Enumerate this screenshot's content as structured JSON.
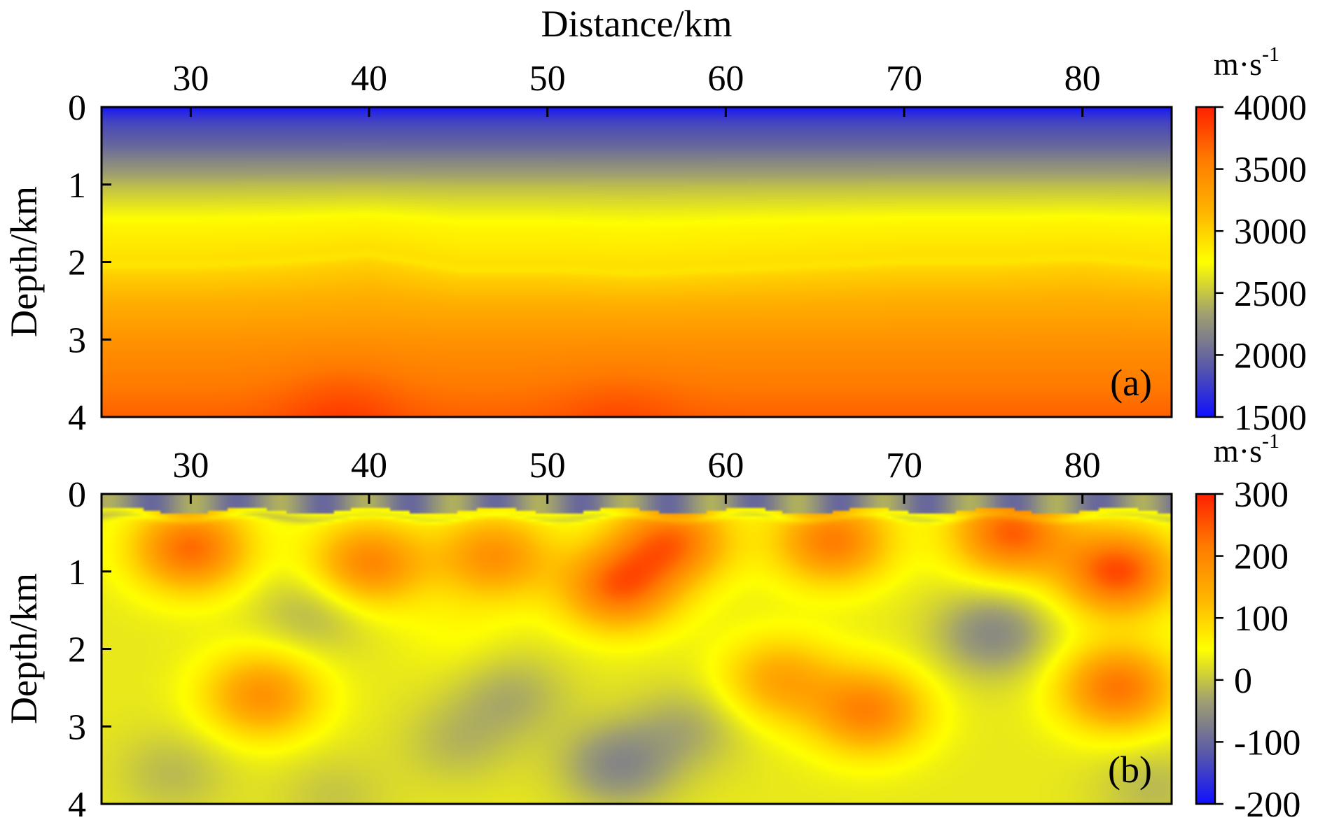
{
  "chart_data": [
    {
      "type": "heatmap",
      "panel_label": "(a)",
      "xlabel": "Distance/km",
      "ylabel": "Depth/km",
      "xlim": [
        25,
        85
      ],
      "ylim": [
        0,
        4
      ],
      "xticks": [
        "30",
        "40",
        "50",
        "60",
        "70",
        "80"
      ],
      "yticks": [
        "0",
        "1",
        "2",
        "3",
        "4"
      ],
      "colorbar": {
        "unit": "m·s",
        "unit_exp": "-1",
        "range": [
          1500,
          4000
        ],
        "ticks": [
          "4000",
          "3500",
          "3000",
          "2500",
          "2000",
          "1500"
        ],
        "colors": [
          "#1010ff",
          "#5a5aa8",
          "#a0a070",
          "#ffff00",
          "#ffb300",
          "#ff7a00",
          "#ff2000"
        ]
      },
      "depth_profile_km": [
        0,
        0.2,
        0.5,
        1.0,
        1.5,
        2.0,
        2.5,
        3.0,
        3.5,
        4.0
      ],
      "velocity_profile": [
        1550,
        1800,
        2000,
        2450,
        2800,
        2950,
        3200,
        3400,
        3550,
        3700
      ],
      "interface_depth_km": [
        2.05,
        2.05,
        2.0,
        1.9,
        2.1,
        2.1,
        2.15,
        2.1,
        2.05,
        2.0,
        2.0,
        1.95,
        2.05
      ]
    },
    {
      "type": "heatmap",
      "panel_label": "(b)",
      "xlabel": "",
      "ylabel": "Depth/km",
      "xlim": [
        25,
        85
      ],
      "ylim": [
        0,
        4
      ],
      "xticks": [
        "30",
        "40",
        "50",
        "60",
        "70",
        "80"
      ],
      "yticks": [
        "0",
        "1",
        "2",
        "3",
        "4"
      ],
      "colorbar": {
        "unit": "m·s",
        "unit_exp": "-1",
        "range": [
          -200,
          300
        ],
        "ticks": [
          "300",
          "200",
          "100",
          "0",
          "-100",
          "-200"
        ],
        "colors": [
          "#1010ff",
          "#5a5aa8",
          "#a0a070",
          "#ffff00",
          "#ffb300",
          "#ff7a00",
          "#ff2000"
        ]
      },
      "anomalies": [
        {
          "x": 30,
          "depth": 0.7,
          "value": 230
        },
        {
          "x": 40,
          "depth": 0.9,
          "value": 200
        },
        {
          "x": 47,
          "depth": 0.8,
          "value": 180
        },
        {
          "x": 54,
          "depth": 1.2,
          "value": 230
        },
        {
          "x": 57,
          "depth": 0.6,
          "value": 220
        },
        {
          "x": 66,
          "depth": 0.6,
          "value": 210
        },
        {
          "x": 76,
          "depth": 0.5,
          "value": 240
        },
        {
          "x": 82,
          "depth": 1.0,
          "value": 260
        },
        {
          "x": 82,
          "depth": 2.5,
          "value": 220
        },
        {
          "x": 34,
          "depth": 2.6,
          "value": 180
        },
        {
          "x": 68,
          "depth": 2.8,
          "value": 200
        },
        {
          "x": 63,
          "depth": 2.4,
          "value": 150
        },
        {
          "x": 37,
          "depth": 1.5,
          "value": -20
        },
        {
          "x": 45,
          "depth": 1.8,
          "value": 50
        },
        {
          "x": 75,
          "depth": 1.8,
          "value": -60
        },
        {
          "x": 48,
          "depth": 2.6,
          "value": -20
        },
        {
          "x": 54,
          "depth": 3.5,
          "value": -60
        },
        {
          "x": 29,
          "depth": 3.6,
          "value": -10
        },
        {
          "x": 38,
          "depth": 3.9,
          "value": 0
        },
        {
          "x": 45,
          "depth": 3.2,
          "value": -10
        },
        {
          "x": 58,
          "depth": 3.0,
          "value": -20
        },
        {
          "x": 84,
          "depth": 3.8,
          "value": -10
        }
      ],
      "near_surface_value": -60
    }
  ]
}
